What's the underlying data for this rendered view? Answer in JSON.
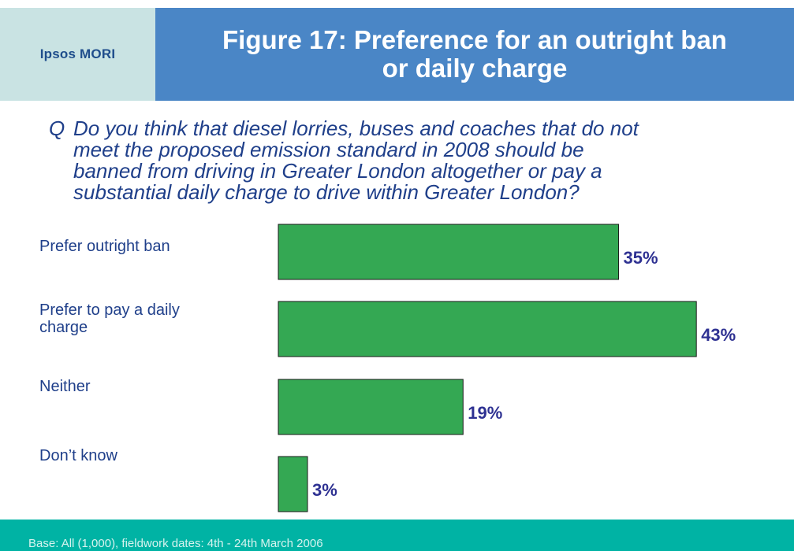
{
  "logo": {
    "text": "Ipsos MORI"
  },
  "title": {
    "line1": "Figure 17: Preference for an outright ban",
    "line2": "or daily charge"
  },
  "question": {
    "prefix": "Q",
    "lines": [
      "Do you think that diesel lorries, buses and coaches that do not",
      "meet the proposed emission standard in 2008 should be",
      "banned from driving in Greater London altogether or pay a",
      "substantial daily charge to drive within Greater London?"
    ]
  },
  "chart_data": {
    "type": "bar",
    "orientation": "horizontal",
    "categories": [
      [
        "Prefer outright ban"
      ],
      [
        "Prefer to pay a daily",
        "charge"
      ],
      [
        "Neither"
      ],
      [
        "Don’t know"
      ]
    ],
    "values": [
      35,
      43,
      19,
      3
    ],
    "value_labels": [
      "35%",
      "43%",
      "19%",
      "3%"
    ],
    "unit": "%",
    "xlim": [
      0,
      50
    ],
    "grid": false,
    "bar_color": "#34a853",
    "bar_edge_color": "#1a1a1a",
    "label_color": "#2e3192"
  },
  "footer": {
    "text": "Base: All (1,000), fieldwork dates: 4th - 24th  March 2006"
  },
  "colors": {
    "logo_bg": "#c9e3e3",
    "title_bg": "#4a86c6",
    "question_text": "#1f3f8a",
    "footer_bg": "#00b3a4"
  }
}
